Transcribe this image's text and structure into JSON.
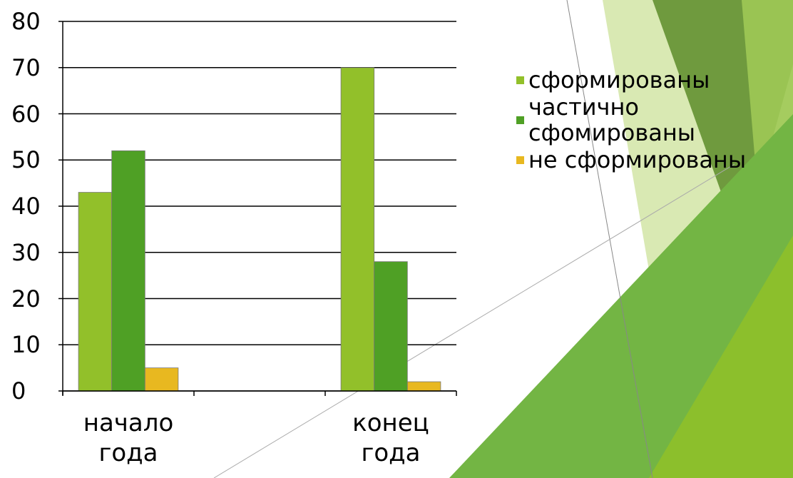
{
  "chart_data": {
    "type": "bar",
    "categories": [
      "начало года",
      null,
      "конец года"
    ],
    "series": [
      {
        "name": "сформированы",
        "color": "#92c02a",
        "values": [
          43,
          null,
          70
        ]
      },
      {
        "name": "частично сфомированы",
        "color": "#4fa025",
        "values": [
          52,
          null,
          28
        ]
      },
      {
        "name": "не сформированы",
        "color": "#e8b820",
        "values": [
          5,
          null,
          2
        ]
      }
    ],
    "ylim": [
      0,
      80
    ],
    "yticks": [
      0,
      10,
      20,
      30,
      40,
      50,
      60,
      70,
      80
    ],
    "grid": true,
    "legend": "right"
  }
}
